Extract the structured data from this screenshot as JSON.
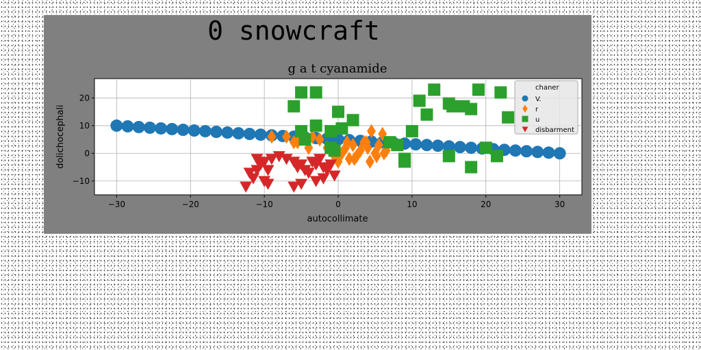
{
  "figure": {
    "suptitle": "0 snowcraft"
  },
  "chart_data": {
    "type": "scatter",
    "title": "g a t cyanamide",
    "xlabel": "autocollimate",
    "ylabel": "dolichocephali",
    "xlim": [
      -33,
      33
    ],
    "ylim": [
      -15,
      27
    ],
    "xticks": [
      -30,
      -20,
      -10,
      0,
      10,
      20,
      30
    ],
    "yticks": [
      -10,
      0,
      10,
      20
    ],
    "grid": true,
    "legend": {
      "title": "chaner",
      "placement": "top-right"
    },
    "series": [
      {
        "name": "V.",
        "marker": "circle",
        "color": "#1f77b4",
        "x": [
          -30,
          -28.5,
          -27,
          -25.5,
          -24,
          -22.5,
          -21,
          -19.5,
          -18,
          -16.5,
          -15,
          -13.5,
          -12,
          -10.5,
          -9,
          -7.5,
          -6,
          -4.5,
          -3,
          -1.5,
          0,
          1.5,
          3,
          4.5,
          6,
          7.5,
          9,
          10.5,
          12,
          13.5,
          15,
          16.5,
          18,
          19.5,
          21,
          22.5,
          24,
          25.5,
          27,
          28.5,
          30
        ],
        "y": [
          10,
          9.75,
          9.5,
          9.25,
          9,
          8.75,
          8.5,
          8.25,
          8,
          7.75,
          7.5,
          7.25,
          7,
          6.75,
          6.5,
          6.25,
          6,
          5.75,
          5.5,
          5.25,
          5,
          4.75,
          4.5,
          4.25,
          4,
          3.75,
          3.5,
          3.25,
          3,
          2.75,
          2.5,
          2.25,
          2,
          1.75,
          1.5,
          1.25,
          1,
          0.75,
          0.5,
          0.25,
          0
        ]
      },
      {
        "name": "r",
        "marker": "diamond",
        "color": "#ff7f0e",
        "x": [
          -9,
          -7,
          -5.5,
          -3.5,
          -2.5,
          -1.5,
          -0.5,
          0.5,
          1,
          1.5,
          2,
          2.5,
          3,
          3.5,
          4,
          4.5,
          5,
          5.5,
          6,
          6.5,
          -6,
          -4,
          0,
          2.2,
          3.8,
          5.2,
          -0.8,
          1.2,
          4.3,
          6.2
        ],
        "y": [
          6,
          6,
          4,
          6,
          5,
          2,
          -1,
          0,
          2,
          -2,
          3,
          -1,
          1,
          4,
          2,
          8,
          0,
          3,
          7,
          1,
          4,
          2,
          -3,
          -2,
          4,
          -1,
          1,
          4,
          -3,
          0
        ],
        "note": ""
      },
      {
        "name": "u",
        "marker": "square",
        "color": "#2ca02c",
        "x": [
          -5,
          -3,
          -6,
          -5,
          -3,
          -4.5,
          -1,
          0,
          0.5,
          -1,
          2,
          7,
          8,
          9,
          10,
          11,
          12,
          13,
          15,
          15.5,
          17,
          18,
          19,
          20,
          22,
          23,
          21.5,
          18,
          15,
          9,
          -0.5
        ],
        "y": [
          22,
          22,
          17,
          8,
          10,
          5,
          8,
          15,
          9,
          2,
          12,
          4,
          3,
          -3,
          8,
          19,
          14,
          23,
          18,
          17,
          17,
          16,
          23,
          2,
          22,
          13,
          -1,
          -5,
          -1,
          -2,
          1
        ]
      },
      {
        "name": "disbarment",
        "marker": "triangle-down",
        "color": "#d62728",
        "x": [
          -12,
          -11,
          -10.5,
          -10,
          -9.5,
          -9,
          -11.5,
          -12.5,
          -10,
          -9.5,
          -11,
          -8,
          -7,
          -6,
          -5.5,
          -5,
          -4.5,
          -4,
          -3.5,
          -3,
          -2.5,
          -2,
          -1.5,
          -1,
          -0.5,
          -6,
          -5,
          -3,
          -2
        ],
        "y": [
          -7,
          -6,
          -4,
          -3,
          -6,
          -2,
          -9,
          -12,
          -10,
          -11,
          -2,
          -1,
          -2,
          -3,
          -5,
          -4,
          -6,
          -7,
          -3,
          -4,
          -2,
          -5,
          -6,
          -4,
          -8,
          -12,
          -11,
          -10,
          -9
        ]
      }
    ]
  }
}
